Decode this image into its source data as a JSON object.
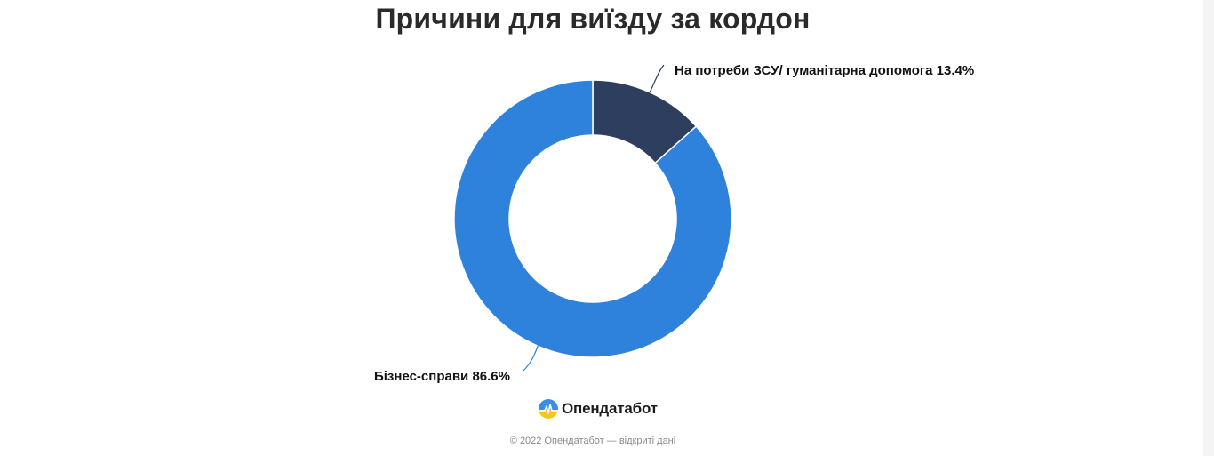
{
  "title": "Причини для виїзду за кордон",
  "chart_data": {
    "type": "pie",
    "variant": "donut",
    "categories": [
      "На потреби ЗСУ/ гуманітарна допомога",
      "Бізнес-справи"
    ],
    "values": [
      13.4,
      86.6
    ],
    "unit": "%",
    "colors": [
      "#2e3e5f",
      "#2e82dc"
    ],
    "labels": [
      {
        "name": "На потреби ЗСУ/ гуманітарна допомога",
        "value_text": "13.4%"
      },
      {
        "name": "Бізнес-справи",
        "value_text": "86.6%"
      }
    ],
    "title": "Причини для виїзду за кордон",
    "legend": "none"
  },
  "brand": {
    "logo_text": "Опендатабот",
    "logo_icon": "opendatabot-logo-icon"
  },
  "footer": {
    "text": "© 2022 Опендатабот — відкриті дані"
  }
}
